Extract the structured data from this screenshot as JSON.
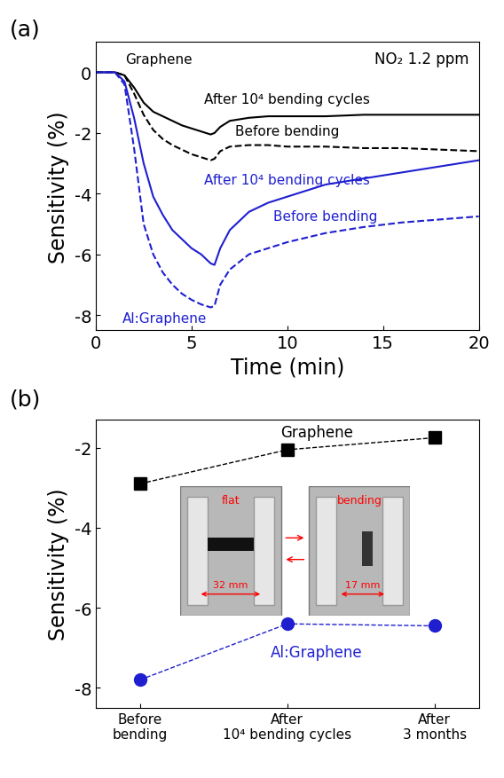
{
  "chart_data": [
    {
      "type": "line",
      "panel": "(a)",
      "xlabel": "Time (min)",
      "ylabel": "Sensitivity (%)",
      "annotations": [
        "NO₂ 1.2 ppm",
        "Graphene",
        "Al:Graphene"
      ],
      "x": [
        0,
        1,
        1.5,
        2,
        2.5,
        3,
        3.5,
        4,
        4.5,
        5,
        5.5,
        6,
        6.2,
        6.5,
        7,
        8,
        9,
        10,
        12,
        14,
        16,
        18,
        20
      ],
      "xlim": [
        0,
        20
      ],
      "xticks": [
        0,
        5,
        10,
        15,
        20
      ],
      "ylim": [
        -8.5,
        1
      ],
      "yticks": [
        -8,
        -6,
        -4,
        -2,
        0
      ],
      "series": [
        {
          "name": "After 10⁴ bending cycles",
          "color": "#000000",
          "line_style": "solid",
          "values": [
            0,
            0,
            -0.1,
            -0.5,
            -1.0,
            -1.3,
            -1.45,
            -1.6,
            -1.75,
            -1.85,
            -1.95,
            -2.05,
            -2.0,
            -1.8,
            -1.6,
            -1.5,
            -1.45,
            -1.45,
            -1.45,
            -1.4,
            -1.4,
            -1.4,
            -1.4
          ]
        },
        {
          "name": "Before bending",
          "color": "#000000",
          "line_style": "dashed",
          "values": [
            0,
            0,
            -0.1,
            -0.7,
            -1.4,
            -1.9,
            -2.2,
            -2.4,
            -2.55,
            -2.7,
            -2.8,
            -2.9,
            -2.85,
            -2.6,
            -2.45,
            -2.4,
            -2.4,
            -2.45,
            -2.45,
            -2.5,
            -2.5,
            -2.55,
            -2.6
          ]
        },
        {
          "name": "After 10⁴ bending cycles",
          "color": "#1f1fd0",
          "line_style": "solid",
          "values": [
            0,
            0,
            -0.3,
            -1.5,
            -3.0,
            -4.1,
            -4.7,
            -5.2,
            -5.5,
            -5.8,
            -6.0,
            -6.3,
            -6.35,
            -5.8,
            -5.2,
            -4.6,
            -4.3,
            -4.1,
            -3.7,
            -3.5,
            -3.3,
            -3.1,
            -2.9
          ]
        },
        {
          "name": "Before bending",
          "color": "#1f1fd0",
          "line_style": "dashed",
          "values": [
            0,
            0,
            -0.4,
            -2.5,
            -5.0,
            -6.0,
            -6.6,
            -7.0,
            -7.3,
            -7.5,
            -7.65,
            -7.75,
            -7.7,
            -7.0,
            -6.5,
            -6.0,
            -5.8,
            -5.6,
            -5.3,
            -5.1,
            -4.95,
            -4.85,
            -4.75
          ]
        }
      ]
    },
    {
      "type": "line",
      "panel": "(b)",
      "ylabel": "Sensitivity (%)",
      "categories": [
        "Before\nbending",
        "After\n10⁴ bending cycles",
        "After\n3 months"
      ],
      "ylim": [
        -8.5,
        -1.3
      ],
      "yticks": [
        -8,
        -6,
        -4,
        -2
      ],
      "inset_labels": [
        "flat",
        "bending",
        "32 mm",
        "17 mm"
      ],
      "series": [
        {
          "name": "Graphene",
          "color": "#000000",
          "marker": "square",
          "line_style": "dashed",
          "values": [
            -2.9,
            -2.05,
            -1.75
          ]
        },
        {
          "name": "Al:Graphene",
          "color": "#1f1fd0",
          "marker": "circle",
          "line_style": "dashed",
          "values": [
            -7.8,
            -6.4,
            -6.45
          ]
        }
      ]
    }
  ]
}
